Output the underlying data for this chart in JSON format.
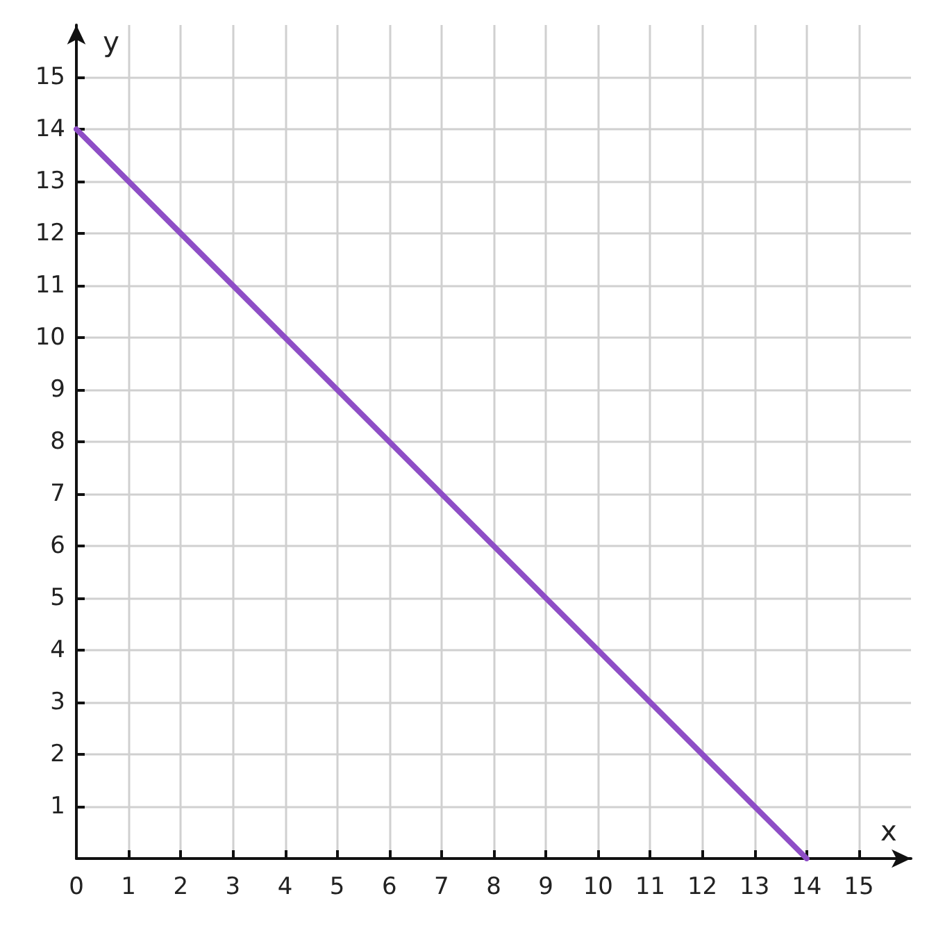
{
  "chart_data": {
    "type": "line",
    "xlabel": "x",
    "ylabel": "y",
    "x": [
      0,
      14
    ],
    "series": [
      {
        "color": "#8e4ec6",
        "values": [
          14,
          0
        ]
      }
    ],
    "xlim": [
      0,
      16
    ],
    "ylim": [
      0,
      16
    ],
    "xticks": [
      0,
      1,
      2,
      3,
      4,
      5,
      6,
      7,
      8,
      9,
      10,
      11,
      12,
      13,
      14,
      15
    ],
    "yticks": [
      {
        "value": 0,
        "label": null
      },
      1,
      2,
      3,
      4,
      5,
      6,
      7,
      8,
      9,
      10,
      11,
      12,
      13,
      14,
      15
    ],
    "grid": true,
    "marker": "none",
    "line_style": "solid"
  }
}
